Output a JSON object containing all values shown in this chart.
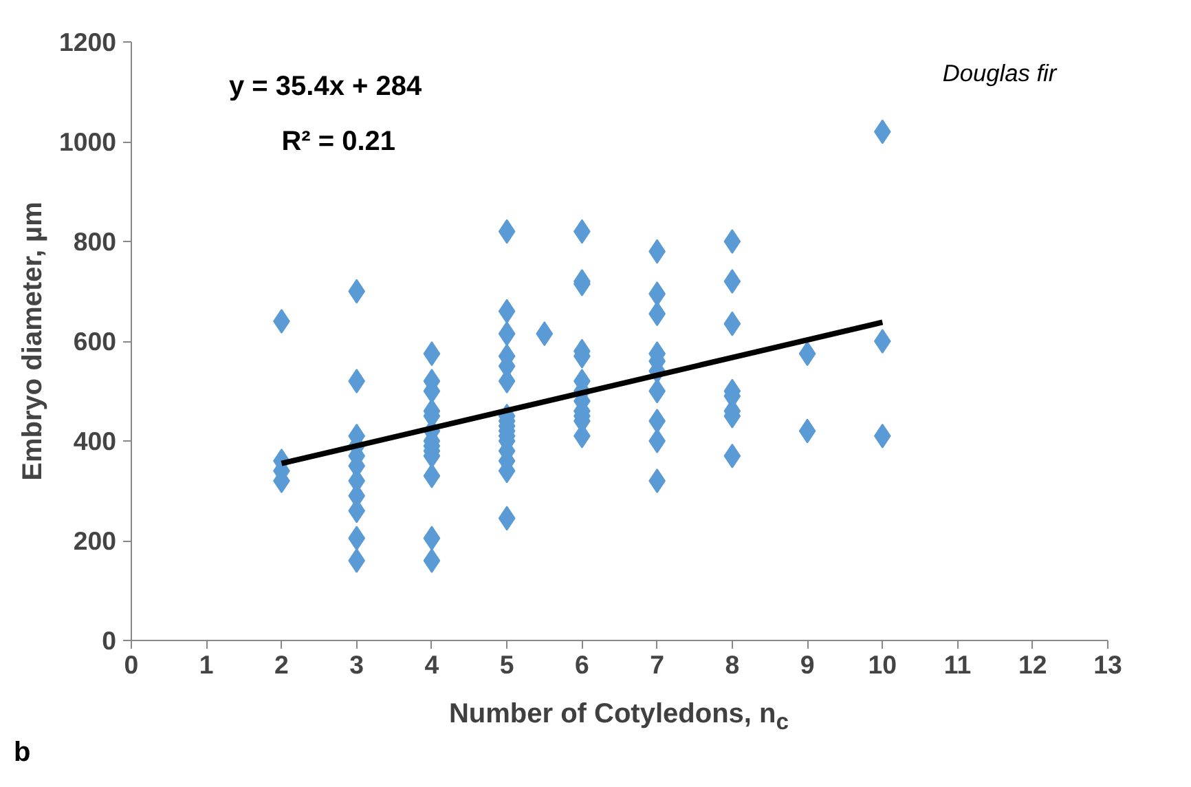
{
  "chart_data": {
    "type": "scatter",
    "xlabel": "Number of Cotyledons, n$_{c}$",
    "ylabel": "Embryo diameter, µm",
    "xlim": [
      0,
      13
    ],
    "ylim": [
      0,
      1200
    ],
    "xticks": [
      0,
      1,
      2,
      3,
      4,
      5,
      6,
      7,
      8,
      9,
      10,
      11,
      12,
      13
    ],
    "yticks": [
      0,
      200,
      400,
      600,
      800,
      1000,
      1200
    ],
    "grid": false,
    "marker": "diamond",
    "annotations": [
      "y = 35.4x + 284",
      "R² = 0.21",
      "Douglas fir",
      "b"
    ],
    "series": [
      {
        "color": "#5b9bd5",
        "x": [
          2,
          2,
          2,
          2,
          3,
          3,
          3,
          3,
          3,
          3,
          3,
          3,
          3,
          3,
          3,
          4,
          4,
          4,
          4,
          4,
          4,
          4,
          4,
          4,
          4,
          4,
          4,
          4,
          5,
          5,
          5,
          5,
          5,
          5,
          5,
          5,
          5,
          5,
          5,
          5,
          5,
          5,
          5,
          5,
          5.5,
          6,
          6,
          6,
          6,
          6,
          6,
          6,
          6,
          6,
          6,
          6,
          6,
          7,
          7,
          7,
          7,
          7,
          7,
          7,
          7,
          7,
          7,
          8,
          8,
          8,
          8,
          8,
          8,
          8,
          8,
          9,
          9,
          10,
          10,
          10
        ],
        "values": [
          640,
          360,
          340,
          320,
          700,
          520,
          410,
          390,
          370,
          350,
          320,
          290,
          260,
          205,
          160,
          575,
          520,
          500,
          460,
          450,
          420,
          400,
          390,
          380,
          370,
          330,
          205,
          160,
          820,
          660,
          615,
          570,
          550,
          520,
          450,
          440,
          430,
          420,
          410,
          400,
          380,
          360,
          340,
          245,
          615,
          820,
          720,
          715,
          580,
          570,
          520,
          500,
          480,
          460,
          450,
          440,
          410,
          780,
          695,
          655,
          575,
          560,
          540,
          500,
          440,
          400,
          320,
          800,
          720,
          635,
          500,
          490,
          460,
          450,
          370,
          575,
          420,
          1020,
          600,
          410
        ]
      },
      {
        "type": "line",
        "color": "#000000",
        "marker": "none",
        "x": [
          2,
          10
        ],
        "values": [
          355,
          638
        ]
      }
    ]
  }
}
